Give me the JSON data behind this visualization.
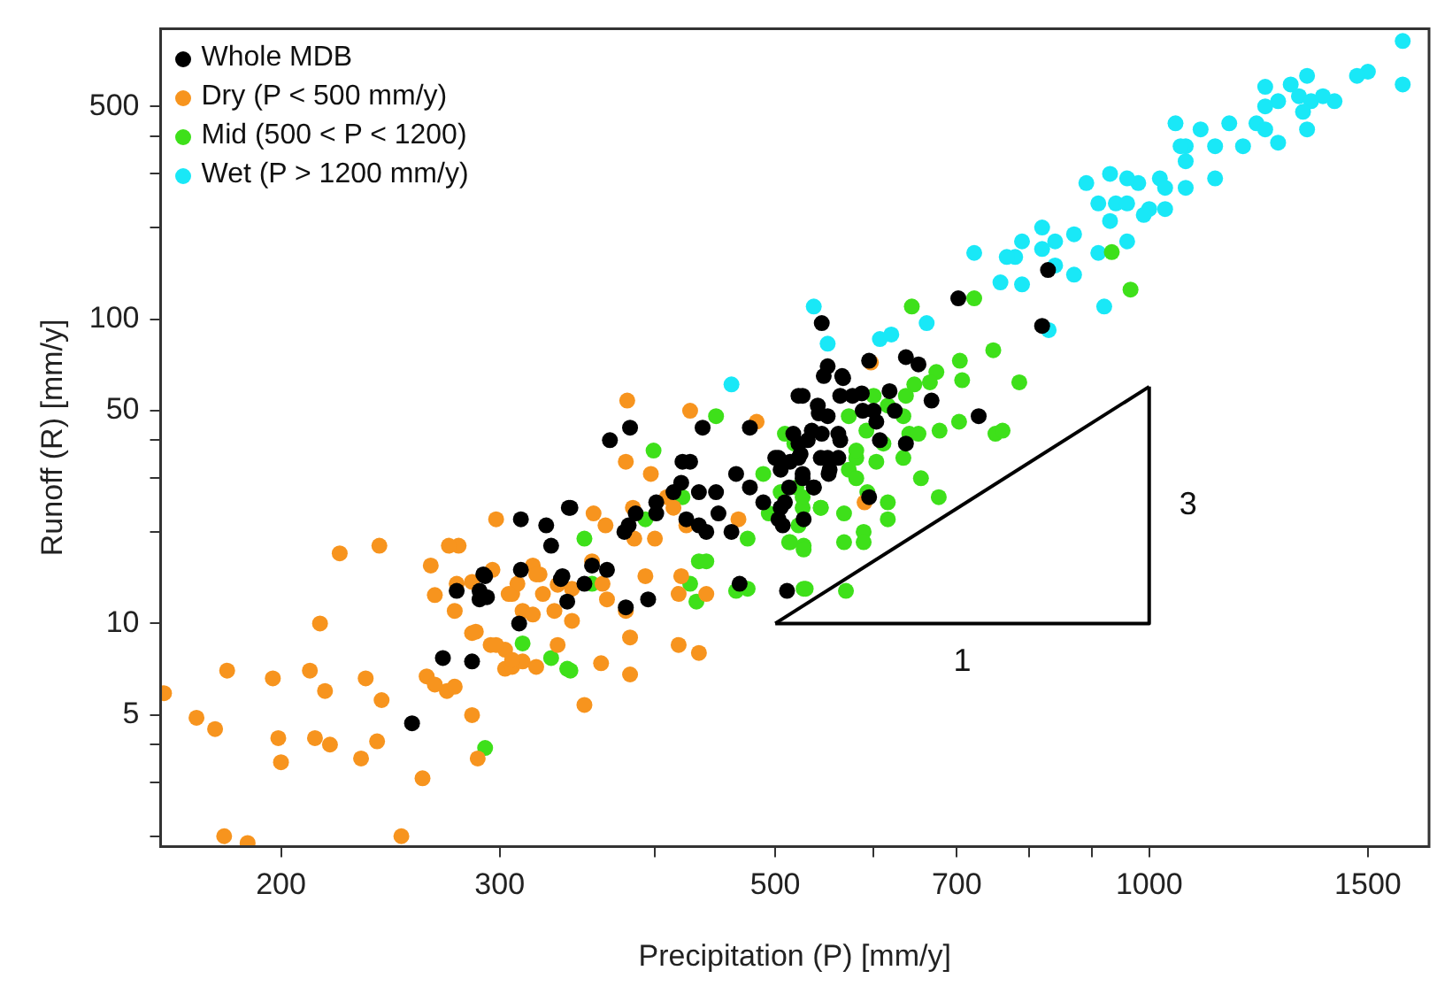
{
  "chart_data": {
    "type": "scatter",
    "xlabel": "Precipitation (P) [mm/y]",
    "ylabel": "Runoff (R) [mm/y]",
    "log": "xy",
    "xlim": [
      160,
      1680
    ],
    "ylim": [
      1.85,
      900
    ],
    "xticks": [
      200,
      300,
      {
        "value": 400,
        "label": null
      },
      500,
      {
        "value": 600,
        "label": null
      },
      700,
      {
        "value": 800,
        "label": null
      },
      {
        "value": 900,
        "label": null
      },
      1000,
      1500
    ],
    "yticks": [
      {
        "value": 2,
        "label": null
      },
      {
        "value": 3,
        "label": null
      },
      {
        "value": 4,
        "label": null
      },
      5,
      10,
      {
        "value": 20,
        "label": null
      },
      {
        "value": 30,
        "label": null
      },
      {
        "value": 40,
        "label": null
      },
      50,
      100,
      {
        "value": 200,
        "label": null
      },
      {
        "value": 300,
        "label": null
      },
      {
        "value": 400,
        "label": null
      },
      500
    ],
    "grid": false,
    "legend": "top left",
    "marker": "circle",
    "annotations": [
      "1",
      "3"
    ],
    "series": [
      {
        "name": "Whole MDB",
        "color": "#000000",
        "x": [
          312,
          327,
          330,
          292,
          312,
          336,
          277,
          289,
          289,
          340,
          311,
          270,
          285,
          255,
          341,
          342,
          368,
          382,
          437,
          477,
          421,
          427,
          420,
          434,
          414,
          401,
          401,
          386,
          381,
          378,
          424,
          434,
          440,
          450,
          461,
          448,
          465,
          477,
          500,
          505,
          524,
          531,
          505,
          507,
          489,
          513,
          537,
          526,
          547,
          567,
          577,
          588,
          542,
          535,
          562,
          544,
          562,
          552,
          526,
          337,
          351,
          356,
          366,
          379,
          395,
          291,
          293,
          468,
          511,
          829,
          702,
          820,
          545,
          551,
          595,
          637,
          652,
          566,
          564,
          587,
          618,
          668,
          729,
          522,
          541,
          600,
          624,
          551,
          603,
          517,
          545,
          564,
          607,
          637,
          522,
          503,
          514,
          522,
          551,
          553,
          526,
          537,
          509,
          503,
          527,
          595
        ],
        "values": [
          22,
          21,
          18,
          14.3,
          15,
          14,
          12.8,
          12.8,
          12,
          11.8,
          10,
          7.7,
          7.5,
          4.7,
          24,
          24,
          40,
          44,
          44,
          44,
          34,
          34,
          29,
          27,
          27,
          25,
          23,
          23,
          21,
          20,
          22,
          21,
          20,
          23,
          20,
          27,
          31,
          28,
          35,
          32,
          36,
          40,
          24,
          21,
          25,
          28,
          28,
          56,
          65,
          64,
          56,
          50,
          49,
          43,
          42,
          35,
          35,
          31,
          31,
          14.3,
          13.5,
          15.5,
          15,
          11.3,
          12,
          14.5,
          12.2,
          13.5,
          12.8,
          145,
          117,
          95,
          97,
          70,
          73,
          75,
          71,
          65,
          56,
          57,
          58,
          54,
          48,
          56,
          52,
          50,
          50,
          48,
          46,
          42,
          42,
          40,
          40,
          39,
          39,
          35,
          34,
          35,
          35,
          32,
          30,
          28,
          25,
          22,
          22,
          26
        ]
      },
      {
        "name": "Dry (P < 500 mm/y)",
        "color": "#f7941e",
        "x": [
          298,
          223,
          240,
          278,
          264,
          266,
          276,
          215,
          181,
          197,
          211,
          217,
          234,
          241,
          262,
          161,
          171,
          177,
          199,
          213,
          219,
          239,
          232,
          200,
          260,
          285,
          288,
          180,
          188,
          250,
          272,
          276,
          285,
          295,
          303,
          307,
          313,
          321,
          303,
          334,
          277,
          285,
          296,
          307,
          310,
          319,
          323,
          325,
          313,
          319,
          334,
          343,
          380,
          427,
          379,
          397,
          273,
          357,
          365,
          385,
          400,
          409,
          414,
          384,
          424,
          467,
          483,
          321,
          305,
          343,
          332,
          366,
          379,
          393,
          420,
          440,
          418,
          363,
          356,
          382,
          418,
          434,
          362,
          382,
          351,
          307,
          298,
          287,
          266,
          597,
          590
        ],
        "values": [
          22,
          17,
          18,
          18,
          15.5,
          12.4,
          11,
          10,
          7,
          6.6,
          7,
          6,
          6.6,
          5.6,
          6.7,
          5.9,
          4.9,
          4.5,
          4.2,
          4.2,
          4.0,
          4.1,
          3.6,
          3.5,
          3.1,
          5.0,
          3.6,
          2.0,
          1.9,
          2.0,
          6.0,
          6.2,
          9.3,
          8.5,
          7.1,
          7.2,
          7.5,
          7.2,
          8.2,
          8.5,
          13.5,
          13.7,
          15,
          12.5,
          13.5,
          15.5,
          14.5,
          12.5,
          11,
          10.7,
          13.4,
          10.2,
          54,
          50,
          34,
          31,
          18,
          23,
          21,
          19,
          19,
          26,
          24,
          24,
          21,
          22,
          46,
          14.5,
          12.5,
          13,
          11,
          12,
          11,
          14.3,
          14.3,
          12.5,
          12.5,
          13.5,
          16,
          9,
          8.5,
          8,
          7.4,
          6.8,
          5.4,
          7.6,
          8.5,
          9.4,
          6.3,
          72,
          25
        ]
      },
      {
        "name": "Mid (500 < P < 1200)",
        "color": "#3ee01a",
        "x": [
          313,
          330,
          340,
          292,
          448,
          399,
          351,
          356,
          342,
          393,
          421,
          434,
          440,
          427,
          432,
          475,
          465,
          475,
          494,
          505,
          489,
          509,
          518,
          520,
          513,
          527,
          544,
          526,
          581,
          573,
          568,
          570,
          529,
          593,
          644,
          723,
          749,
          786,
          966,
          674,
          704,
          707,
          666,
          647,
          634,
          641,
          652,
          678,
          703,
          752,
          762,
          655,
          677,
          616,
          616,
          568,
          544,
          526,
          522,
          514,
          527,
          589,
          589,
          581,
          603,
          634,
          611,
          581,
          573,
          616,
          600,
          637,
          592,
          527,
          933
        ],
        "values": [
          8.6,
          7.7,
          7.1,
          3.9,
          48,
          37,
          19,
          13.5,
          7,
          22,
          26,
          16,
          16,
          13.5,
          11.8,
          13,
          12.8,
          19,
          23,
          27,
          31,
          42,
          39,
          28,
          18.5,
          18,
          24,
          24,
          35,
          32,
          18.5,
          12.8,
          13,
          27,
          110,
          117,
          79,
          62,
          125,
          67,
          73,
          63,
          62,
          61,
          48,
          42,
          42,
          43,
          46,
          42,
          43,
          30,
          26,
          25,
          22,
          23,
          24,
          26,
          21,
          18.5,
          17.5,
          20,
          18.5,
          30,
          34,
          35,
          39,
          37,
          48,
          52,
          56,
          56,
          43,
          13,
          166
        ]
      },
      {
        "name": "Wet (P > 1200 mm/y)",
        "color": "#19e8f7",
        "x": [
          1600,
          1500,
          1470,
          1600,
          1340,
          1300,
          1240,
          1320,
          1350,
          1410,
          1380,
          1270,
          1330,
          1340,
          1240,
          1220,
          1240,
          1270,
          1190,
          1160,
          1130,
          1100,
          1050,
          1070,
          1070,
          1060,
          1130,
          1070,
          1020,
          1030,
          980,
          960,
          930,
          890,
          910,
          940,
          960,
          1000,
          1030,
          930,
          990,
          960,
          870,
          820,
          790,
          840,
          820,
          780,
          910,
          840,
          870,
          790,
          920,
          830,
          537,
          551,
          607,
          620,
          662,
          723,
          768,
          759,
          461
        ],
        "values": [
          820,
          650,
          630,
          590,
          630,
          590,
          580,
          540,
          520,
          520,
          540,
          520,
          480,
          420,
          500,
          440,
          420,
          380,
          370,
          440,
          370,
          420,
          440,
          370,
          330,
          370,
          290,
          270,
          290,
          270,
          280,
          290,
          300,
          280,
          240,
          240,
          240,
          230,
          230,
          210,
          220,
          180,
          190,
          200,
          180,
          180,
          170,
          160,
          165,
          150,
          140,
          130,
          110,
          92,
          110,
          83,
          86,
          89,
          97,
          165,
          160,
          132,
          61
        ]
      },
      {
        "type": "line",
        "marker": "none",
        "color": "#000000",
        "x": [
          500,
          1000,
          1000
        ],
        "values": [
          10,
          10,
          60
        ]
      },
      {
        "type": "line",
        "marker": "none",
        "color": "#000000",
        "x": [
          500,
          1000
        ],
        "values": [
          10,
          60
        ]
      }
    ]
  }
}
